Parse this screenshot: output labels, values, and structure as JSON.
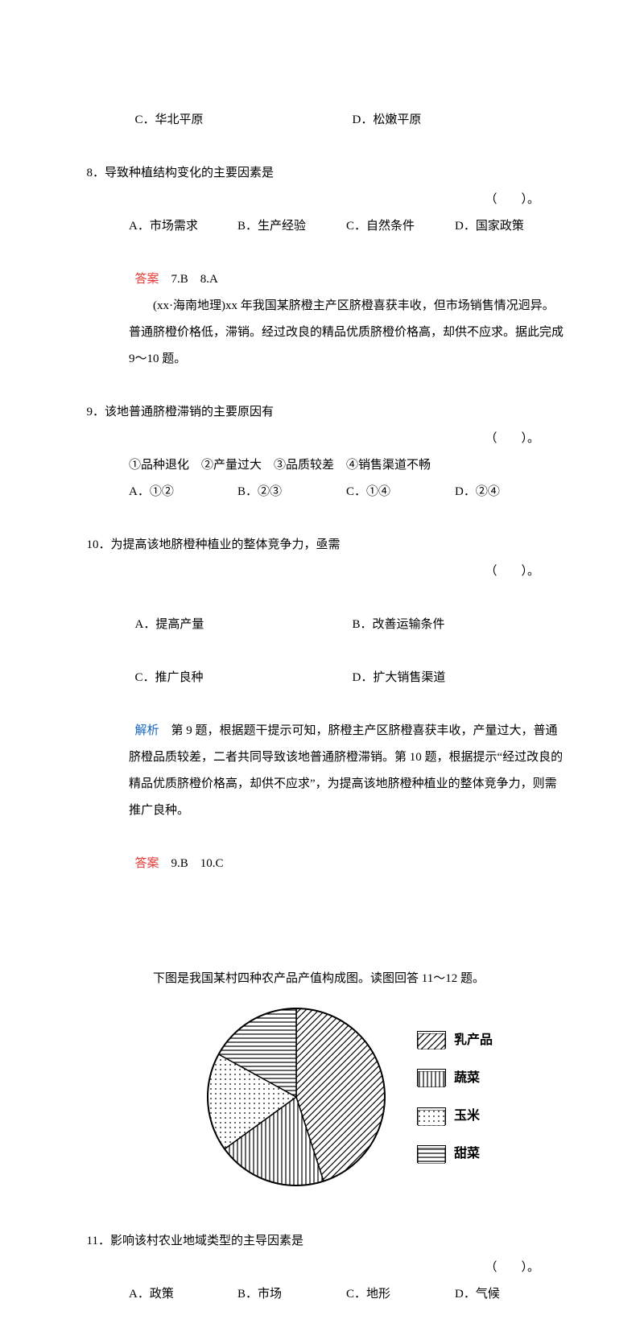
{
  "q7_options": {
    "C": "C．华北平原",
    "D": "D．松嫩平原"
  },
  "q8": {
    "stem": "8．导致种植结构变化的主要因素是",
    "paren": "（　　）。",
    "A": "A．市场需求",
    "B": "B．生产经验",
    "C": "C．自然条件",
    "D": "D．国家政策"
  },
  "ans_7_8": {
    "label": "答案",
    "text": "　7.B　8.A"
  },
  "context_9_10": "(xx·海南地理)xx 年我国某脐橙主产区脐橙喜获丰收，但市场销售情况迥异。普通脐橙价格低，滞销。经过改良的精品优质脐橙价格高，却供不应求。据此完成 9～10 题。",
  "q9": {
    "stem": "9．该地普通脐橙滞销的主要原因有",
    "paren": "（　　）。",
    "list": "①品种退化　②产量过大　③品质较差　④销售渠道不畅",
    "A": "A．①②",
    "B": "B．②③",
    "C": "C．①④",
    "D": "D．②④"
  },
  "q10": {
    "stem": "10．为提高该地脐橙种植业的整体竞争力，亟需",
    "paren": "（　　）。",
    "A": "A．提高产量",
    "B": "B．改善运输条件",
    "C": "C．推广良种",
    "D": "D．扩大销售渠道"
  },
  "analysis_9_10": {
    "label": "解析",
    "text": "　第 9 题，根据题干提示可知，脐橙主产区脐橙喜获丰收，产量过大，普通脐橙品质较差，二者共同导致该地普通脐橙滞销。第 10 题，根据提示“经过改良的精品优质脐橙价格高，却供不应求”，为提高该地脐橙种植业的整体竞争力，则需推广良种。"
  },
  "ans_9_10": {
    "label": "答案",
    "text": "　9.B　10.C"
  },
  "caption_11_12": "下图是我国某村四种农产品产值构成图。读图回答 11～12 题。",
  "chart": {
    "type": "pie",
    "slices": [
      {
        "label": "乳产品",
        "value": 45,
        "pattern": "diag"
      },
      {
        "label": "蔬菜",
        "value": 20,
        "pattern": "vert"
      },
      {
        "label": "玉米",
        "value": 18,
        "pattern": "dots"
      },
      {
        "label": "甜菜",
        "value": 17,
        "pattern": "horiz"
      }
    ],
    "radius": 110,
    "stroke": "#000000",
    "legend": [
      "乳产品",
      "蔬菜",
      "玉米",
      "甜菜"
    ]
  },
  "q11": {
    "stem": "11．影响该村农业地域类型的主导因素是",
    "paren": "（　　）。",
    "A": "A．政策",
    "B": "B．市场",
    "C": "C．地形",
    "D": "D．气候"
  }
}
